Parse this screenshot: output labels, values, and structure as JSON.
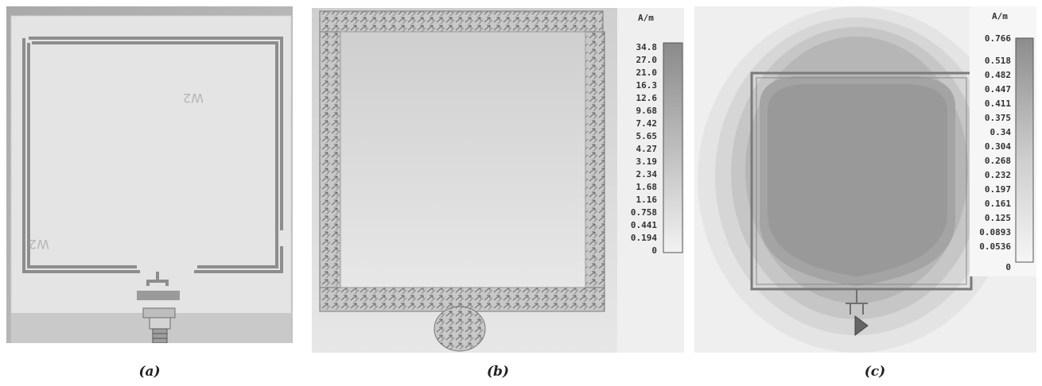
{
  "figure": {
    "captions": [
      "(a)",
      "(b)",
      "(c)"
    ]
  },
  "panel_a": {
    "board_marks": [
      "W2",
      "W2"
    ]
  },
  "panel_b": {
    "unit": "A/m",
    "ticks": [
      "34.8",
      "27.0",
      "21.0",
      "16.3",
      "12.6",
      "9.68",
      "7.42",
      "5.65",
      "4.27",
      "3.19",
      "2.34",
      "1.68",
      "1.16",
      "0.758",
      "0.441",
      "0.194",
      "0"
    ]
  },
  "panel_c": {
    "unit": "A/m",
    "ticks": [
      "0.766",
      "0.518",
      "0.482",
      "0.447",
      "0.411",
      "0.375",
      "0.34",
      "0.304",
      "0.268",
      "0.232",
      "0.197",
      "0.161",
      "0.125",
      "0.0893",
      "0.0536",
      "0"
    ]
  },
  "colors": {
    "board": "#e6e6e6",
    "trace": "#8a8a8a",
    "field_high": "#8c8c8c",
    "field_low": "#f4f4f4"
  }
}
